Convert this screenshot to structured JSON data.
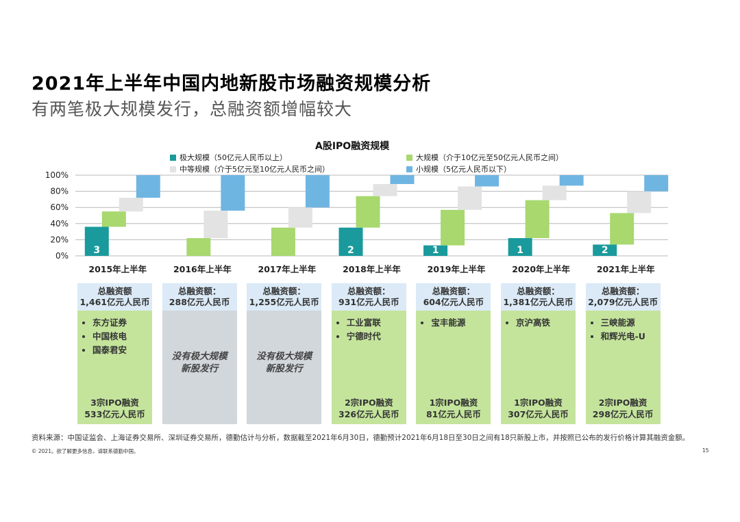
{
  "header": {
    "title": "2021年上半年中国内地新股市场融资规模分析",
    "subtitle": "有两笔极大规模发行，总融资额增幅较大"
  },
  "chart_data": {
    "type": "bar",
    "title": "A股IPO融资规模",
    "categories": [
      "2015年上半年",
      "2016年上半年",
      "2017年上半年",
      "2018年上半年",
      "2019年上半年",
      "2020年上半年",
      "2021年上半年"
    ],
    "y_ticks": [
      "100%",
      "80%",
      "60%",
      "40%",
      "20%",
      "0%"
    ],
    "ylim": [
      0,
      100
    ],
    "legend": [
      {
        "name": "极大规模（50亿元人民币以上）",
        "color": "#1a9a9c"
      },
      {
        "name": "大规模（介于10亿元至50亿元人民币之间）",
        "color": "#a8d86e"
      },
      {
        "name": "中等规模（介于5亿元至10亿元人民币之间）",
        "color": "#e3e3e3"
      },
      {
        "name": "小规模（5亿元人民币以下）",
        "color": "#6fb5e2"
      }
    ],
    "series": [
      {
        "name": "极大规模（50亿元人民币以上）",
        "values": [
          36,
          0,
          0,
          35,
          13,
          22,
          14
        ]
      },
      {
        "name": "大规模（介于10亿元至50亿元人民币之间）",
        "values": [
          19,
          22,
          35,
          39,
          44,
          47,
          39
        ]
      },
      {
        "name": "中等规模（介于5亿元至10亿元人民币之间）",
        "values": [
          17,
          34,
          25,
          15,
          29,
          18,
          27
        ]
      },
      {
        "name": "小规模（5亿元人民币以下）",
        "values": [
          28,
          44,
          40,
          11,
          14,
          13,
          20
        ]
      }
    ],
    "count_labels": [
      "3",
      "",
      "",
      "2",
      "1",
      "1",
      "2"
    ]
  },
  "summary_boxes": [
    {
      "head": "总融资额\n1,461亿元人民币",
      "items": [
        "东方证券",
        "中国核电",
        "国泰君安"
      ],
      "none_text": "",
      "foot": "3宗IPO融资\n533亿元人民币"
    },
    {
      "head": "总融资额：\n288亿元人民币",
      "items": [],
      "none_text": "没有极大规模\n新股发行",
      "foot": ""
    },
    {
      "head": "总融资额：\n1,255亿元人民币",
      "items": [],
      "none_text": "没有极大规模\n新股发行",
      "foot": ""
    },
    {
      "head": "总融资额：\n931亿元人民币",
      "items": [
        "工业富联",
        "宁德时代"
      ],
      "none_text": "",
      "foot": "2宗IPO融资\n326亿元人民币"
    },
    {
      "head": "总融资额：\n604亿元人民币",
      "items": [
        "宝丰能源"
      ],
      "none_text": "",
      "foot": "1宗IPO融资\n81亿元人民币"
    },
    {
      "head": "总融资额：\n1,381亿元人民币",
      "items": [
        "京沪高铁"
      ],
      "none_text": "",
      "foot": "1宗IPO融资\n307亿元人民币"
    },
    {
      "head": "总融资额：\n2,079亿元人民币",
      "items": [
        "三峡能源",
        "和辉光电-U"
      ],
      "none_text": "",
      "foot": "2宗IPO融资\n298亿元人民币"
    }
  ],
  "footer": {
    "source": "资料来源：中国证监会、上海证券交易所、深圳证券交易所，德勤估计与分析，数据截至2021年6月30日，德勤预计2021年6月18日至30日之间有18只新股上市，并按照已公布的发行价格计算其融资金额。",
    "copyright": "© 2021。欲了解更多信息，请联系德勤中国。",
    "page": "15"
  }
}
